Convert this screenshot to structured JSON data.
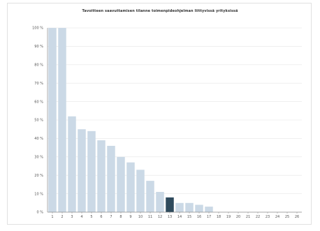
{
  "chart_data": {
    "type": "bar",
    "title": "Tavoitteen saavuttamisen tilanne toimenpideohjelman liittyvissä yrityksissä",
    "categories": [
      "1",
      "2",
      "3",
      "4",
      "5",
      "6",
      "7",
      "8",
      "9",
      "10",
      "11",
      "12",
      "13",
      "14",
      "15",
      "16",
      "17",
      "18",
      "19",
      "20",
      "21",
      "22",
      "23",
      "24",
      "25",
      "26"
    ],
    "values": [
      100,
      100,
      52,
      45,
      44,
      39,
      36,
      30,
      27,
      23,
      17,
      11,
      8,
      5,
      5,
      4,
      3,
      0,
      0,
      0,
      0,
      0,
      0,
      0,
      0,
      0
    ],
    "highlight_index": 12,
    "y_ticks": [
      "0 %",
      "10 %",
      "20 %",
      "30 %",
      "40 %",
      "50 %",
      "60 %",
      "70 %",
      "80 %",
      "90 %",
      "100 %"
    ],
    "ylim": [
      0,
      100
    ],
    "xlabel": "",
    "ylabel": "",
    "grid": true,
    "colors": {
      "bar": "#cbd9e6",
      "highlight": "#2e4a5c",
      "grid": "#e6e6e6",
      "axis": "#8a8a8a"
    }
  }
}
